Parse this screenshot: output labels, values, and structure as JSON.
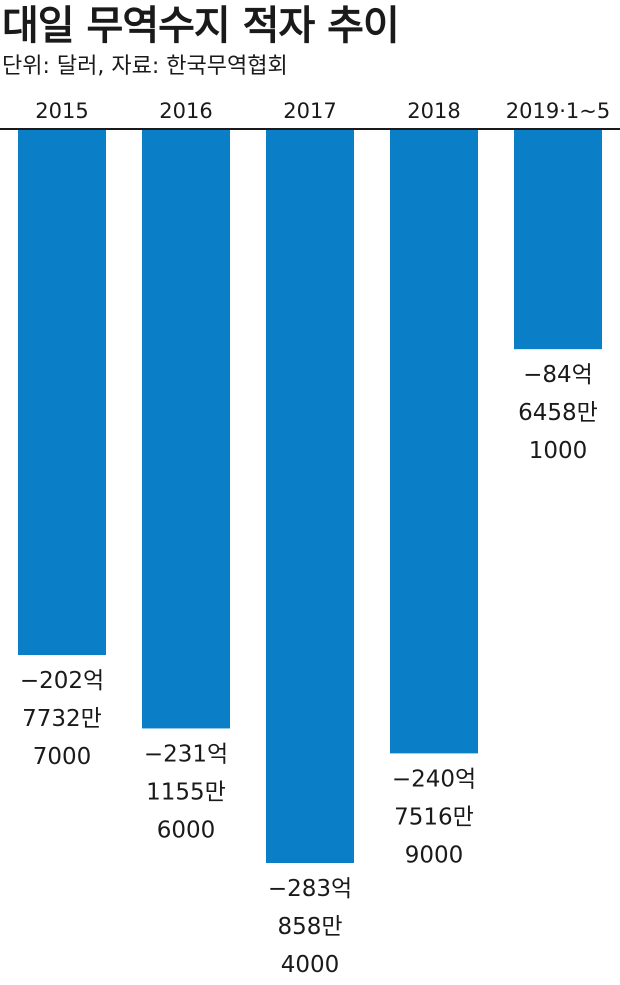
{
  "header": {
    "title": "대일 무역수지 적자 추이",
    "subtitle": "단위: 달러, 자료: 한국무역협회"
  },
  "colors": {
    "bar": "#0a7fc8",
    "axis": "#1a1a1a"
  },
  "chart_data": {
    "type": "bar",
    "title": "대일 무역수지 적자 추이",
    "subtitle": "단위: 달러, 자료: 한국무역협회",
    "categories": [
      "2015",
      "2016",
      "2017",
      "2018",
      "2019·1~5"
    ],
    "values": [
      -20277327000,
      -23111556000,
      -28308584000,
      -24075169000,
      -8464581000
    ],
    "data_labels": [
      [
        "−202억",
        "7732만",
        "7000"
      ],
      [
        "−231억",
        "1155만",
        "6000"
      ],
      [
        "−283억",
        "858만",
        "4000"
      ],
      [
        "−240억",
        "7516만",
        "9000"
      ],
      [
        "−84억",
        "6458만",
        "1000"
      ]
    ],
    "ylim": [
      -28308584000,
      0
    ],
    "grid": false,
    "legend": "none"
  }
}
